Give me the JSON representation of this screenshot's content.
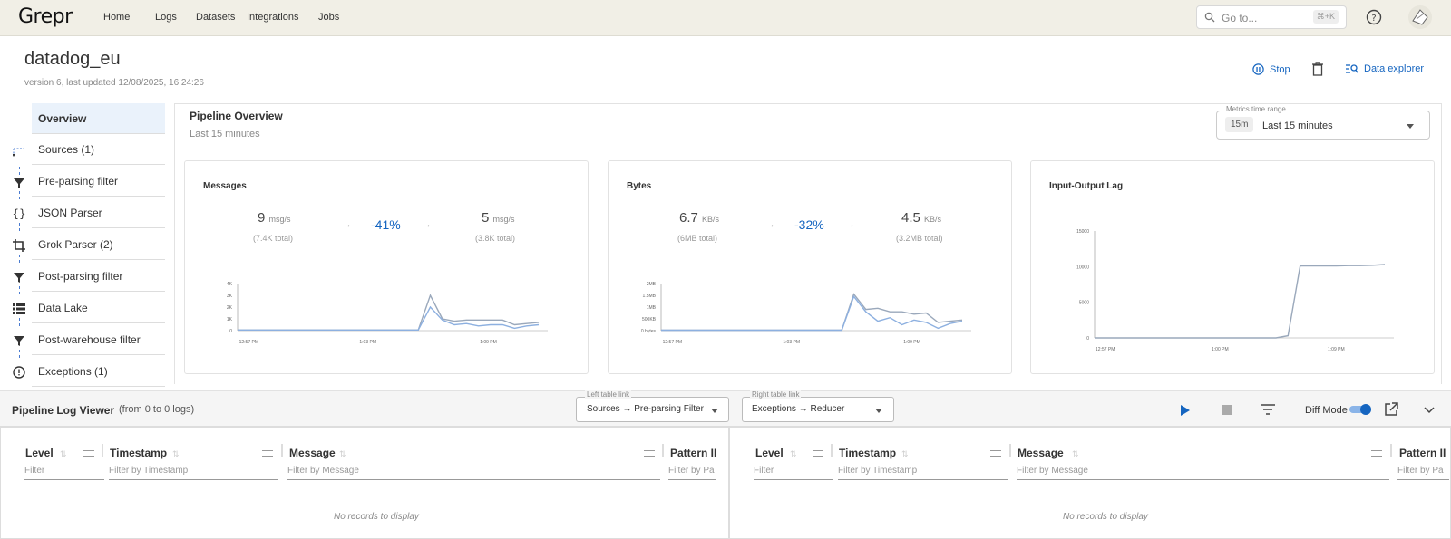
{
  "app": {
    "logo": "Grepr"
  },
  "nav": {
    "items": [
      "Home",
      "Logs",
      "Datasets",
      "Integrations",
      "Jobs"
    ]
  },
  "search": {
    "placeholder": "Go to...",
    "shortcut": "⌘+K"
  },
  "pipeline": {
    "name": "datadog_eu",
    "meta": "version 6, last updated 12/08/2025, 16:24:26",
    "actions": {
      "stop": "Stop",
      "data_explorer": "Data explorer"
    }
  },
  "sidebar": {
    "items": [
      {
        "label": "Overview",
        "icon": "none",
        "active": true
      },
      {
        "label": "Sources (1)",
        "icon": "source-branch-icon"
      },
      {
        "label": "Pre-parsing filter",
        "icon": "funnel-icon"
      },
      {
        "label": "JSON Parser",
        "icon": "braces-icon"
      },
      {
        "label": "Grok Parser (2)",
        "icon": "crop-icon"
      },
      {
        "label": "Post-parsing filter",
        "icon": "funnel-icon"
      },
      {
        "label": "Data Lake",
        "icon": "database-list-icon"
      },
      {
        "label": "Post-warehouse filter",
        "icon": "funnel-icon"
      },
      {
        "label": "Exceptions (1)",
        "icon": "alert-circle-icon"
      }
    ]
  },
  "overview": {
    "title": "Pipeline Overview",
    "subtitle": "Last 15 minutes",
    "time_range": {
      "label": "Metrics time range",
      "chip": "15m",
      "value": "Last 15 minutes"
    }
  },
  "cards": {
    "messages": {
      "title": "Messages",
      "in_value": "9",
      "in_unit": "msg/s",
      "in_total": "(7.4K total)",
      "pct": "-41%",
      "out_value": "5",
      "out_unit": "msg/s",
      "out_total": "(3.8K total)"
    },
    "bytes": {
      "title": "Bytes",
      "in_value": "6.7",
      "in_unit": "KB/s",
      "in_total": "(6MB total)",
      "pct": "-32%",
      "out_value": "4.5",
      "out_unit": "KB/s",
      "out_total": "(3.2MB total)"
    },
    "lag": {
      "title": "Input-Output Lag"
    }
  },
  "chart_data": [
    {
      "type": "line",
      "title": "Messages",
      "yticks": [
        "4K",
        "3K",
        "2K",
        "1K",
        "0"
      ],
      "xticks": [
        "12:57 PM",
        "1:03 PM",
        "1:09 PM"
      ],
      "ylim": [
        0,
        4000
      ],
      "series": [
        {
          "values": [
            50,
            50,
            50,
            50,
            50,
            50,
            50,
            50,
            50,
            50,
            50,
            50,
            50,
            50,
            50,
            50,
            3000,
            1000,
            800,
            900,
            900,
            900,
            900,
            500,
            600,
            700
          ]
        },
        {
          "values": [
            50,
            50,
            50,
            50,
            50,
            50,
            50,
            50,
            50,
            50,
            50,
            50,
            50,
            50,
            50,
            50,
            2000,
            900,
            500,
            600,
            400,
            500,
            500,
            200,
            400,
            500
          ]
        }
      ]
    },
    {
      "type": "line",
      "title": "Bytes",
      "yticks": [
        "2MB",
        "1.5MB",
        "1MB",
        "500KB",
        "0 bytes"
      ],
      "xticks": [
        "12:57 PM",
        "1:03 PM",
        "1:09 PM"
      ],
      "ylim": [
        0,
        2000
      ],
      "series": [
        {
          "values": [
            20,
            20,
            20,
            20,
            20,
            20,
            20,
            20,
            20,
            20,
            20,
            20,
            20,
            20,
            20,
            20,
            1550,
            900,
            950,
            800,
            800,
            700,
            750,
            350,
            400,
            450
          ]
        },
        {
          "values": [
            20,
            20,
            20,
            20,
            20,
            20,
            20,
            20,
            20,
            20,
            20,
            20,
            20,
            20,
            20,
            20,
            1450,
            800,
            400,
            550,
            250,
            450,
            350,
            100,
            300,
            400
          ]
        }
      ]
    },
    {
      "type": "line",
      "title": "Input-Output Lag",
      "yticks": [
        "15000",
        "10000",
        "5000",
        "0"
      ],
      "xticks": [
        "12:57 PM",
        "1:00 PM",
        "1:09 PM"
      ],
      "ylim": [
        0,
        15000
      ],
      "series": [
        {
          "values": [
            0,
            0,
            0,
            0,
            0,
            0,
            0,
            0,
            0,
            0,
            0,
            0,
            0,
            0,
            0,
            0,
            300,
            10100,
            10100,
            10100,
            10100,
            10150,
            10150,
            10200,
            10300
          ]
        }
      ]
    }
  ],
  "log_viewer": {
    "title": "Pipeline Log Viewer",
    "range": "(from 0 to 0 logs)",
    "left_link": {
      "label": "Left table link",
      "value": "Sources → Pre-parsing Filter"
    },
    "right_link": {
      "label": "Right table link",
      "value": "Exceptions → Reducer"
    },
    "diff_mode": "Diff Mode",
    "columns": [
      "Level",
      "Timestamp",
      "Message",
      "Pattern II"
    ],
    "filters": [
      "Filter",
      "Filter by Timestamp",
      "Filter by Message",
      "Filter by Pa"
    ],
    "empty": "No records to display"
  },
  "colors": {
    "accent": "#1565c0",
    "topbar": "#f1efe6",
    "chart_line": "#8aa8d6"
  }
}
